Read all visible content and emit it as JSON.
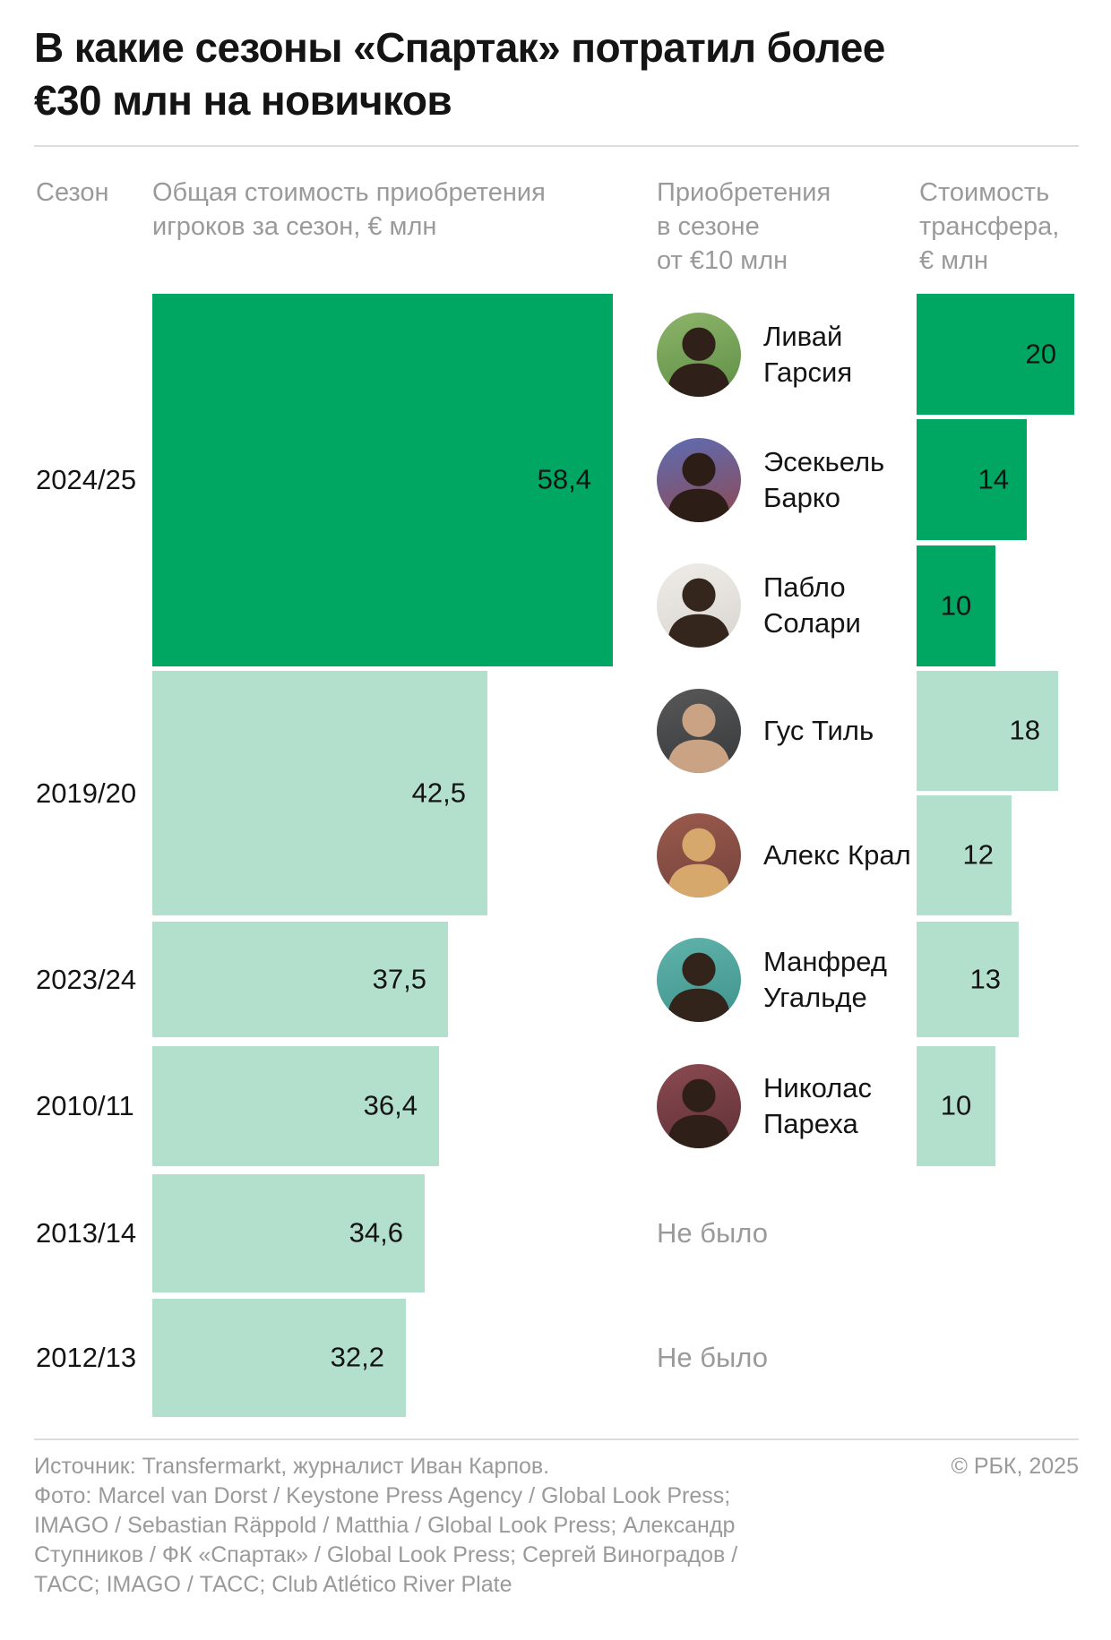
{
  "page": {
    "title_lines": [
      "В какие сезоны «Спартак» потратил более",
      "€30 млн на новичков"
    ],
    "columns": {
      "season": "Сезон",
      "total_lines": [
        "Общая стоимость приобретения",
        "игроков за сезон, € млн"
      ],
      "signings_lines": [
        "Приобретения",
        "в сезоне",
        "от €10 млн"
      ],
      "fee_lines": [
        "Стоимость",
        "трансфера,",
        "€ млн"
      ]
    }
  },
  "colors": {
    "accent_dark_green": "#00a763",
    "accent_light_green": "#b3e0cd",
    "text_primary": "#141414",
    "text_muted": "#9a9a9a",
    "divider": "#dcdcdc",
    "background": "#ffffff"
  },
  "chart_data": {
    "type": "bar",
    "orientation": "horizontal",
    "unit": "€ млн",
    "title": "В какие сезоны «Спартак» потратил более €30 млн на новичков",
    "value_axis_hidden": true,
    "none_label": "Не было",
    "rows": [
      {
        "season": "2024/25",
        "total": 58.4,
        "total_label": "58,4",
        "highlight": true,
        "players": [
          {
            "name_lines": [
              "Ливай",
              "Гарсия"
            ],
            "fee": 20,
            "fee_label": "20",
            "avatar": {
              "bg": "#8db46a",
              "bg2": "#5d8f45",
              "fg": "#2f2119"
            }
          },
          {
            "name_lines": [
              "Эсекьель",
              "Барко"
            ],
            "fee": 14,
            "fee_label": "14",
            "avatar": {
              "bg": "#5d6cb4",
              "bg2": "#8f4a52",
              "fg": "#2c1e17"
            }
          },
          {
            "name_lines": [
              "Пабло",
              "Солари"
            ],
            "fee": 10,
            "fee_label": "10",
            "avatar": {
              "bg": "#efece8",
              "bg2": "#d9d4cf",
              "fg": "#35261d"
            }
          }
        ]
      },
      {
        "season": "2019/20",
        "total": 42.5,
        "total_label": "42,5",
        "highlight": false,
        "players": [
          {
            "name_lines": [
              "Гус Тиль"
            ],
            "fee": 18,
            "fee_label": "18",
            "avatar": {
              "bg": "#585858",
              "bg2": "#37393b",
              "fg": "#caa284"
            }
          },
          {
            "name_lines": [
              "Алекс Крал"
            ],
            "fee": 12,
            "fee_label": "12",
            "avatar": {
              "bg": "#9a5a4c",
              "bg2": "#74423c",
              "fg": "#d6a86b"
            }
          }
        ]
      },
      {
        "season": "2023/24",
        "total": 37.5,
        "total_label": "37,5",
        "highlight": false,
        "players": [
          {
            "name_lines": [
              "Манфред",
              "Угальде"
            ],
            "fee": 13,
            "fee_label": "13",
            "avatar": {
              "bg": "#5fb3ab",
              "bg2": "#3f938c",
              "fg": "#33241b"
            }
          }
        ]
      },
      {
        "season": "2010/11",
        "total": 36.4,
        "total_label": "36,4",
        "highlight": false,
        "players": [
          {
            "name_lines": [
              "Николас",
              "Пареха"
            ],
            "fee": 10,
            "fee_label": "10",
            "avatar": {
              "bg": "#8a4a50",
              "bg2": "#5f3138",
              "fg": "#2e2019"
            }
          }
        ]
      },
      {
        "season": "2013/14",
        "total": 34.6,
        "total_label": "34,6",
        "highlight": false,
        "players": [],
        "no_players_label": "Не было"
      },
      {
        "season": "2012/13",
        "total": 32.2,
        "total_label": "32,2",
        "highlight": false,
        "players": [],
        "no_players_label": "Не было"
      }
    ]
  },
  "footer": {
    "lines": [
      "Источник: Transfermarkt, журналист Иван Карпов.",
      "Фото: Marcel van Dorst / Keystone Press Agency / Global Look Press;",
      "IMAGO / Sebastian Räppold / Matthia / Global Look Press;  Александр",
      "Ступников / ФК «Спартак» / Global Look Press; Сергей Виноградов /",
      "ТАСС;  IMAGO / ТАСС; Club Atlético River Plate"
    ],
    "copyright": "© РБК, 2025"
  }
}
